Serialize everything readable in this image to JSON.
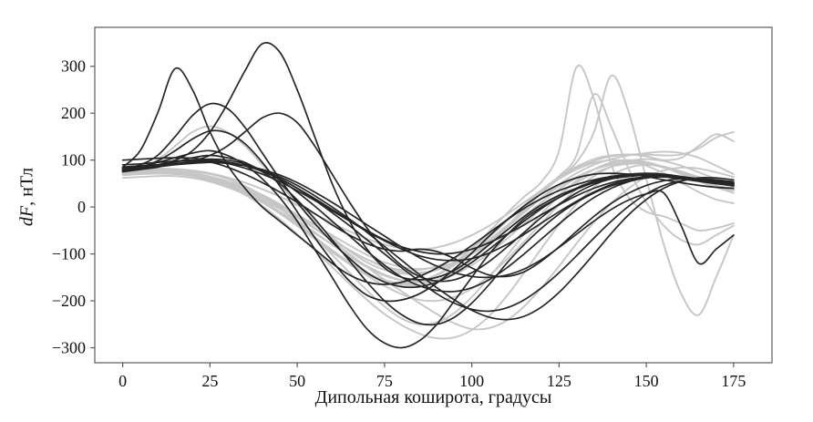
{
  "figure": {
    "xlabel": "Дипольная коширота, градусы",
    "ylabel_variable": "dF",
    "ylabel_unit": ", нТл"
  },
  "chart_data": {
    "type": "line",
    "title": "",
    "xlabel": "Дипольная коширота, градусы",
    "ylabel": "dF, нТл",
    "xlim": [
      -8,
      186
    ],
    "ylim": [
      -332,
      383
    ],
    "x_ticks": [
      0,
      25,
      50,
      75,
      100,
      125,
      150,
      175
    ],
    "y_ticks": [
      -300,
      -200,
      -100,
      0,
      100,
      200,
      300
    ],
    "grid": false,
    "legend": "none",
    "frame_color": "#5a5a5a",
    "tick_label_color": "#111111",
    "colors": {
      "dark": "#262626",
      "light": "#c6c6c6"
    },
    "x": [
      0,
      5,
      10,
      15,
      20,
      25,
      30,
      35,
      40,
      45,
      50,
      55,
      60,
      65,
      70,
      75,
      80,
      85,
      90,
      95,
      100,
      105,
      110,
      115,
      120,
      125,
      130,
      135,
      140,
      145,
      150,
      155,
      160,
      165,
      170,
      175
    ],
    "series": [
      {
        "name": "gray-01",
        "group": "light",
        "values": [
          70,
          72,
          74,
          76,
          75,
          70,
          60,
          45,
          24,
          -2,
          -32,
          -66,
          -102,
          -140,
          -178,
          -212,
          -238,
          -250,
          -246,
          -226,
          -192,
          -150,
          -104,
          -58,
          -14,
          24,
          56,
          80,
          95,
          100,
          96,
          85,
          70,
          55,
          42,
          35
        ]
      },
      {
        "name": "gray-02",
        "group": "light",
        "values": [
          75,
          76,
          76,
          74,
          68,
          58,
          44,
          26,
          2,
          -26,
          -58,
          -92,
          -128,
          -164,
          -198,
          -228,
          -252,
          -270,
          -280,
          -278,
          -262,
          -232,
          -190,
          -140,
          -88,
          -38,
          6,
          42,
          68,
          84,
          90,
          86,
          74,
          58,
          42,
          30
        ]
      },
      {
        "name": "gray-03",
        "group": "light",
        "values": [
          72,
          74,
          75,
          74,
          70,
          62,
          50,
          34,
          14,
          -10,
          -36,
          -64,
          -92,
          -118,
          -140,
          -156,
          -162,
          -158,
          -144,
          -120,
          -88,
          -52,
          -14,
          22,
          54,
          120,
          298,
          230,
          90,
          20,
          -10,
          -20,
          -35,
          -50,
          -45,
          -35
        ]
      },
      {
        "name": "gray-04",
        "group": "light",
        "values": [
          68,
          70,
          71,
          70,
          66,
          58,
          46,
          30,
          10,
          -14,
          -40,
          -68,
          -96,
          -122,
          -144,
          -158,
          -164,
          -160,
          -146,
          -124,
          -96,
          -64,
          -30,
          4,
          36,
          64,
          86,
          102,
          110,
          112,
          108,
          100,
          105,
          130,
          155,
          140
        ]
      },
      {
        "name": "gray-05",
        "group": "light",
        "values": [
          74,
          75,
          75,
          73,
          68,
          60,
          48,
          32,
          12,
          -12,
          -38,
          -66,
          -94,
          -120,
          -142,
          -158,
          -166,
          -166,
          -156,
          -138,
          -112,
          -80,
          -44,
          -6,
          30,
          62,
          95,
          160,
          280,
          200,
          60,
          -80,
          -185,
          -230,
          -150,
          -60
        ]
      },
      {
        "name": "gray-06",
        "group": "light",
        "values": [
          78,
          80,
          80,
          78,
          72,
          64,
          52,
          38,
          20,
          0,
          -22,
          -46,
          -70,
          -92,
          -112,
          -128,
          -138,
          -140,
          -134,
          -120,
          -100,
          -74,
          -44,
          -12,
          20,
          48,
          72,
          90,
          102,
          110,
          115,
          118,
          115,
          105,
          88,
          70
        ]
      },
      {
        "name": "gray-07",
        "group": "light",
        "values": [
          80,
          81,
          82,
          81,
          78,
          72,
          63,
          52,
          38,
          22,
          4,
          -15,
          -34,
          -52,
          -68,
          -80,
          -88,
          -90,
          -86,
          -76,
          -60,
          -40,
          -16,
          10,
          36,
          60,
          80,
          94,
          100,
          98,
          88,
          72,
          52,
          32,
          16,
          8
        ]
      },
      {
        "name": "gray-08",
        "group": "light",
        "values": [
          72,
          73,
          73,
          71,
          66,
          57,
          45,
          29,
          10,
          -12,
          -37,
          -64,
          -92,
          -120,
          -146,
          -168,
          -186,
          -198,
          -200,
          -192,
          -174,
          -146,
          -112,
          -74,
          -34,
          4,
          38,
          66,
          86,
          98,
          102,
          98,
          88,
          74,
          60,
          50
        ]
      },
      {
        "name": "gray-09",
        "group": "light",
        "values": [
          62,
          64,
          66,
          66,
          62,
          54,
          42,
          28,
          10,
          -10,
          -32,
          -56,
          -80,
          -104,
          -126,
          -144,
          -156,
          -160,
          -156,
          -144,
          -124,
          -98,
          -68,
          -36,
          -4,
          26,
          52,
          72,
          86,
          92,
          92,
          86,
          76,
          64,
          52,
          44
        ]
      },
      {
        "name": "gray-10",
        "group": "light",
        "values": [
          70,
          71,
          72,
          71,
          68,
          61,
          50,
          36,
          20,
          0,
          -22,
          -46,
          -70,
          -92,
          -112,
          -126,
          -134,
          -134,
          -126,
          -110,
          -88,
          -60,
          -30,
          2,
          32,
          60,
          82,
          98,
          108,
          112,
          112,
          110,
          112,
          125,
          148,
          160
        ]
      },
      {
        "name": "gray-11",
        "group": "light",
        "values": [
          76,
          77,
          77,
          75,
          70,
          62,
          51,
          38,
          22,
          4,
          -16,
          -38,
          -60,
          -82,
          -102,
          -118,
          -128,
          -132,
          -128,
          -118,
          -100,
          -78,
          -50,
          -20,
          10,
          38,
          62,
          80,
          92,
          96,
          94,
          86,
          74,
          60,
          46,
          36
        ]
      },
      {
        "name": "gray-12",
        "group": "light",
        "values": [
          74,
          75,
          75,
          73,
          68,
          60,
          48,
          34,
          16,
          -4,
          -28,
          -54,
          -80,
          -106,
          -128,
          -146,
          -156,
          -158,
          -150,
          -134,
          -110,
          -78,
          -42,
          -4,
          32,
          66,
          110,
          240,
          170,
          80,
          10,
          -40,
          -70,
          -80,
          -60,
          -40
        ]
      },
      {
        "name": "gray-13",
        "group": "light",
        "values": [
          72,
          80,
          100,
          130,
          160,
          172,
          160,
          130,
          90,
          48,
          8,
          -30,
          -64,
          -94,
          -118,
          -134,
          -142,
          -142,
          -134,
          -118,
          -96,
          -70,
          -40,
          -10,
          18,
          44,
          64,
          80,
          90,
          94,
          92,
          84,
          72,
          58,
          46,
          38
        ]
      },
      {
        "name": "gray-14",
        "group": "light",
        "values": [
          76,
          77,
          77,
          76,
          72,
          65,
          55,
          42,
          26,
          6,
          -18,
          -44,
          -72,
          -100,
          -128,
          -155,
          -180,
          -205,
          -228,
          -248,
          -260,
          -258,
          -242,
          -212,
          -172,
          -126,
          -78,
          -32,
          8,
          40,
          64,
          78,
          84,
          82,
          74,
          64
        ]
      },
      {
        "name": "black-01",
        "group": "dark",
        "values": [
          80,
          85,
          95,
          105,
          115,
          120,
          110,
          90,
          60,
          20,
          -30,
          -90,
          -150,
          -210,
          -260,
          -290,
          -300,
          -285,
          -250,
          -200,
          -150,
          -100,
          -60,
          -25,
          0,
          20,
          40,
          55,
          65,
          70,
          72,
          70,
          65,
          60,
          55,
          50
        ]
      },
      {
        "name": "black-02",
        "group": "dark",
        "values": [
          75,
          80,
          85,
          95,
          105,
          110,
          105,
          95,
          75,
          50,
          15,
          -25,
          -70,
          -115,
          -160,
          -200,
          -230,
          -248,
          -250,
          -235,
          -205,
          -165,
          -120,
          -80,
          -45,
          -15,
          10,
          30,
          45,
          55,
          62,
          65,
          63,
          58,
          52,
          48
        ]
      },
      {
        "name": "black-03",
        "group": "dark",
        "values": [
          80,
          85,
          90,
          100,
          120,
          160,
          220,
          290,
          348,
          330,
          250,
          150,
          50,
          -30,
          -90,
          -130,
          -150,
          -155,
          -150,
          -135,
          -110,
          -80,
          -50,
          -20,
          5,
          25,
          40,
          52,
          60,
          65,
          68,
          66,
          62,
          58,
          54,
          50
        ]
      },
      {
        "name": "black-04",
        "group": "dark",
        "values": [
          85,
          120,
          200,
          295,
          250,
          160,
          90,
          40,
          0,
          -30,
          -60,
          -90,
          -120,
          -145,
          -160,
          -165,
          -160,
          -148,
          -130,
          -108,
          -82,
          -55,
          -28,
          -3,
          18,
          35,
          48,
          58,
          65,
          68,
          68,
          65,
          60,
          55,
          50,
          46
        ]
      },
      {
        "name": "black-05",
        "group": "dark",
        "values": [
          80,
          90,
          110,
          150,
          195,
          220,
          210,
          170,
          115,
          60,
          10,
          -35,
          -75,
          -110,
          -140,
          -160,
          -170,
          -170,
          -160,
          -142,
          -118,
          -90,
          -60,
          -30,
          -3,
          20,
          38,
          52,
          62,
          68,
          70,
          68,
          64,
          58,
          52,
          48
        ]
      },
      {
        "name": "black-06",
        "group": "dark",
        "values": [
          78,
          82,
          86,
          92,
          98,
          102,
          100,
          92,
          78,
          58,
          32,
          2,
          -30,
          -62,
          -94,
          -124,
          -150,
          -168,
          -178,
          -180,
          -172,
          -155,
          -130,
          -100,
          -68,
          -36,
          -6,
          20,
          40,
          54,
          62,
          65,
          63,
          58,
          52,
          47
        ]
      },
      {
        "name": "black-07",
        "group": "dark",
        "values": [
          90,
          92,
          95,
          98,
          100,
          100,
          96,
          88,
          76,
          60,
          40,
          18,
          -5,
          -28,
          -50,
          -70,
          -85,
          -95,
          -100,
          -98,
          -90,
          -76,
          -58,
          -38,
          -16,
          5,
          24,
          40,
          52,
          60,
          64,
          64,
          60,
          55,
          50,
          45
        ]
      },
      {
        "name": "black-08",
        "group": "dark",
        "values": [
          82,
          85,
          88,
          92,
          96,
          98,
          95,
          88,
          76,
          60,
          40,
          15,
          -12,
          -40,
          -70,
          -100,
          -130,
          -158,
          -185,
          -205,
          -218,
          -222,
          -215,
          -198,
          -172,
          -140,
          -104,
          -66,
          -30,
          2,
          28,
          46,
          56,
          60,
          58,
          54
        ]
      },
      {
        "name": "black-09",
        "group": "dark",
        "values": [
          78,
          85,
          98,
          120,
          145,
          162,
          158,
          135,
          95,
          45,
          -10,
          -65,
          -115,
          -158,
          -188,
          -200,
          -198,
          -185,
          -162,
          -132,
          -98,
          -62,
          -28,
          2,
          28,
          48,
          62,
          70,
          72,
          70,
          65,
          58,
          52,
          46,
          42,
          40
        ]
      },
      {
        "name": "black-10",
        "group": "dark",
        "values": [
          80,
          83,
          86,
          90,
          93,
          95,
          93,
          88,
          78,
          64,
          46,
          24,
          0,
          -26,
          -54,
          -84,
          -114,
          -144,
          -172,
          -198,
          -220,
          -235,
          -240,
          -233,
          -213,
          -182,
          -143,
          -100,
          -56,
          -16,
          16,
          40,
          55,
          62,
          62,
          58
        ]
      },
      {
        "name": "black-11",
        "group": "dark",
        "values": [
          76,
          80,
          88,
          96,
          100,
          96,
          85,
          70,
          52,
          32,
          10,
          -14,
          -38,
          -60,
          -78,
          -90,
          -94,
          -90,
          -95,
          -110,
          -130,
          -145,
          -148,
          -138,
          -115,
          -85,
          -52,
          -20,
          8,
          30,
          46,
          56,
          60,
          58,
          54,
          50
        ]
      },
      {
        "name": "black-12",
        "group": "dark",
        "values": [
          100,
          102,
          104,
          105,
          104,
          100,
          93,
          83,
          70,
          54,
          35,
          14,
          -8,
          -30,
          -52,
          -72,
          -90,
          -104,
          -112,
          -114,
          -110,
          -98,
          -80,
          -58,
          -34,
          -10,
          12,
          32,
          48,
          58,
          64,
          66,
          64,
          60,
          56,
          52
        ]
      },
      {
        "name": "black-13",
        "group": "dark",
        "values": [
          85,
          88,
          90,
          92,
          94,
          95,
          93,
          88,
          80,
          68,
          52,
          32,
          10,
          -14,
          -38,
          -62,
          -86,
          -108,
          -126,
          -140,
          -148,
          -150,
          -145,
          -132,
          -112,
          -86,
          -58,
          -30,
          -5,
          15,
          28,
          30,
          -40,
          -120,
          -90,
          -60
        ]
      },
      {
        "name": "black-14",
        "group": "dark",
        "values": [
          82,
          85,
          88,
          92,
          98,
          110,
          130,
          160,
          190,
          200,
          180,
          130,
          70,
          10,
          -45,
          -90,
          -125,
          -148,
          -158,
          -155,
          -140,
          -116,
          -86,
          -54,
          -22,
          6,
          30,
          48,
          60,
          66,
          68,
          66,
          62,
          56,
          50,
          46
        ]
      }
    ]
  }
}
